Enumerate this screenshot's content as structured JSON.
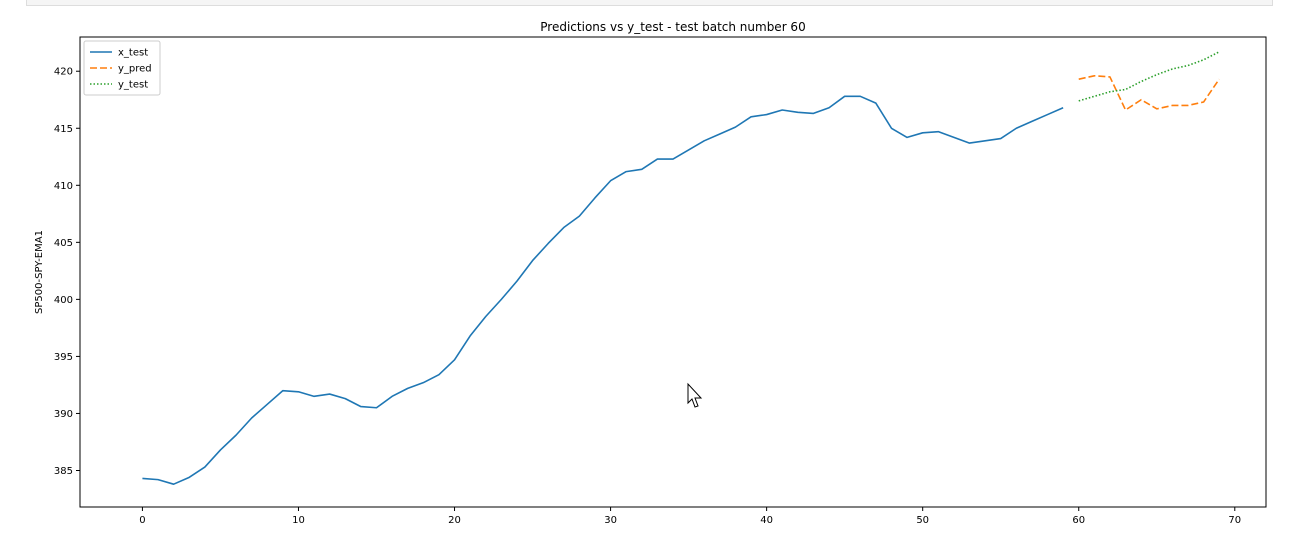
{
  "chart_data": {
    "type": "line",
    "title": "Predictions vs y_test - test batch number 60",
    "xlabel": "",
    "ylabel": "SP500-SPY-EMA1",
    "xlim": [
      -4,
      72
    ],
    "ylim": [
      381.8,
      423
    ],
    "xticks": [
      0,
      10,
      20,
      30,
      40,
      50,
      60,
      70
    ],
    "yticks": [
      385,
      390,
      395,
      400,
      405,
      410,
      415,
      420
    ],
    "legend_position": "top-left",
    "grid": false,
    "series": [
      {
        "name": "x_test",
        "color": "#1f77b4",
        "style": "solid",
        "x": [
          0,
          1,
          2,
          3,
          4,
          5,
          6,
          7,
          8,
          9,
          10,
          11,
          12,
          13,
          14,
          15,
          16,
          17,
          18,
          19,
          20,
          21,
          22,
          23,
          24,
          25,
          26,
          27,
          28,
          29,
          30,
          31,
          32,
          33,
          34,
          35,
          36,
          37,
          38,
          39,
          40,
          41,
          42,
          43,
          44,
          45,
          46,
          47,
          48,
          49,
          50,
          51,
          52,
          53,
          54,
          55,
          56,
          57,
          58,
          59
        ],
        "values": [
          384.3,
          384.2,
          383.8,
          384.4,
          385.3,
          386.8,
          388.1,
          389.6,
          390.8,
          392.0,
          391.9,
          391.5,
          391.7,
          391.3,
          390.6,
          390.5,
          391.5,
          392.2,
          392.7,
          393.4,
          394.7,
          396.8,
          398.5,
          400.0,
          401.6,
          403.4,
          404.9,
          406.3,
          407.3,
          408.9,
          410.4,
          411.2,
          411.4,
          412.3,
          412.3,
          413.1,
          413.9,
          414.5,
          415.1,
          416.0,
          416.2,
          416.6,
          416.4,
          416.3,
          416.8,
          417.8,
          417.8,
          417.2,
          415.0,
          414.2,
          414.6,
          414.7,
          414.2,
          413.7,
          413.9,
          414.1,
          415.0,
          415.6,
          416.2,
          416.8
        ]
      },
      {
        "name": "y_pred",
        "color": "#ff7f0e",
        "style": "dashed",
        "x": [
          60,
          61,
          62,
          63,
          64,
          65,
          66,
          67,
          68,
          69
        ],
        "values": [
          419.3,
          419.6,
          419.5,
          416.6,
          417.5,
          416.7,
          417.0,
          417.0,
          417.3,
          419.3
        ]
      },
      {
        "name": "y_test",
        "color": "#2ca02c",
        "style": "dotted",
        "x": [
          60,
          61,
          62,
          63,
          64,
          65,
          66,
          67,
          68,
          69
        ],
        "values": [
          417.4,
          417.8,
          418.2,
          418.4,
          419.1,
          419.7,
          420.2,
          420.5,
          421.0,
          421.7
        ]
      }
    ]
  }
}
